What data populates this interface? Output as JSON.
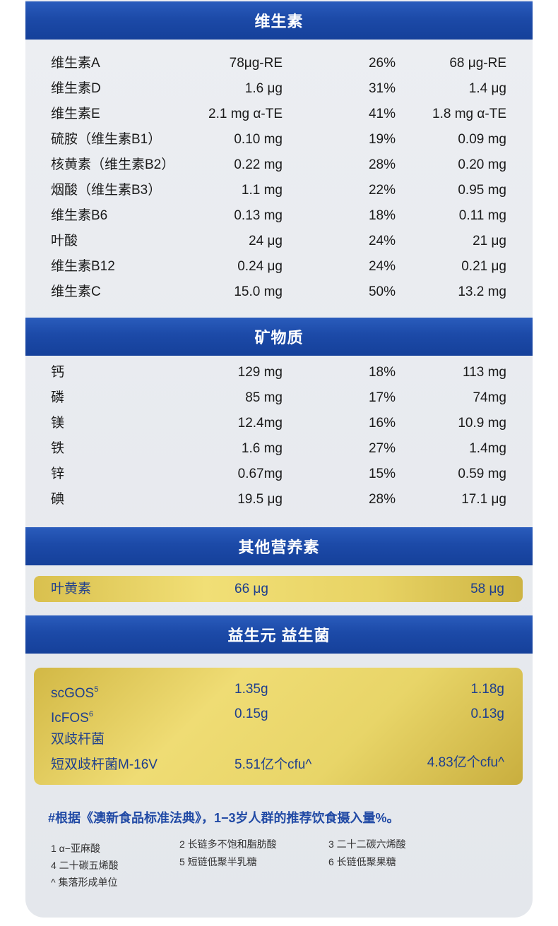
{
  "sections": {
    "vitamins": "维生素",
    "minerals": "矿物质",
    "other": "其他营养素",
    "pre_pro": "益生元 益生菌"
  },
  "vitamins": [
    {
      "name": "维生素A",
      "value": "78μg-RE",
      "pct": "26%",
      "value2": "68 μg-RE"
    },
    {
      "name": "维生素D",
      "value": "1.6 μg",
      "pct": "31%",
      "value2": "1.4 μg"
    },
    {
      "name": "维生素E",
      "value": "2.1 mg α-TE",
      "pct": "41%",
      "value2": "1.8 mg α-TE"
    },
    {
      "name": "硫胺（维生素B1）",
      "value": "0.10 mg",
      "pct": "19%",
      "value2": "0.09 mg"
    },
    {
      "name": "核黄素（维生素B2）",
      "value": "0.22 mg",
      "pct": "28%",
      "value2": "0.20 mg"
    },
    {
      "name": "烟酸（维生素B3）",
      "value": "1.1 mg",
      "pct": "22%",
      "value2": "0.95 mg"
    },
    {
      "name": "维生素B6",
      "value": "0.13 mg",
      "pct": "18%",
      "value2": "0.11 mg"
    },
    {
      "name": "叶酸",
      "value": "24 μg",
      "pct": "24%",
      "value2": "21 μg"
    },
    {
      "name": "维生素B12",
      "value": "0.24 μg",
      "pct": "24%",
      "value2": "0.21 μg"
    },
    {
      "name": "维生素C",
      "value": "15.0 mg",
      "pct": "50%",
      "value2": "13.2 mg"
    }
  ],
  "minerals": [
    {
      "name": "钙",
      "value": "129 mg",
      "pct": "18%",
      "value2": "113 mg"
    },
    {
      "name": "磷",
      "value": "85 mg",
      "pct": "17%",
      "value2": "74mg"
    },
    {
      "name": "镁",
      "value": "12.4mg",
      "pct": "16%",
      "value2": "10.9 mg"
    },
    {
      "name": "铁",
      "value": "1.6 mg",
      "pct": "27%",
      "value2": "1.4mg"
    },
    {
      "name": "锌",
      "value": "0.67mg",
      "pct": "15%",
      "value2": "0.59 mg"
    },
    {
      "name": "碘",
      "value": "19.5 μg",
      "pct": "28%",
      "value2": "17.1 μg"
    }
  ],
  "other": {
    "name": "叶黄素",
    "value": "66 μg",
    "value2": "58 μg"
  },
  "prebiotics": [
    {
      "name": "scGOS",
      "sup": "5",
      "value": "1.35g",
      "value2": "1.18g"
    },
    {
      "name": "IcFOS",
      "sup": "6",
      "value": "0.15g",
      "value2": "0.13g"
    }
  ],
  "probiotic_group": "双歧杆菌",
  "probiotic": {
    "name": "短双歧杆菌M-16V",
    "value": "5.51亿个cfu^",
    "value2": "4.83亿个cfu^"
  },
  "note": "#根据《澳新食品标准法典》，1−3岁人群的推荐饮食摄入量%。",
  "footnotes": [
    "1 α−亚麻酸",
    "2 长链多不饱和脂肪酸",
    "3 二十二碳六烯酸",
    "4 二十碳五烯酸",
    "5 短链低聚半乳糖",
    "6 长链低聚果糖",
    "^ 集落形成单位"
  ]
}
